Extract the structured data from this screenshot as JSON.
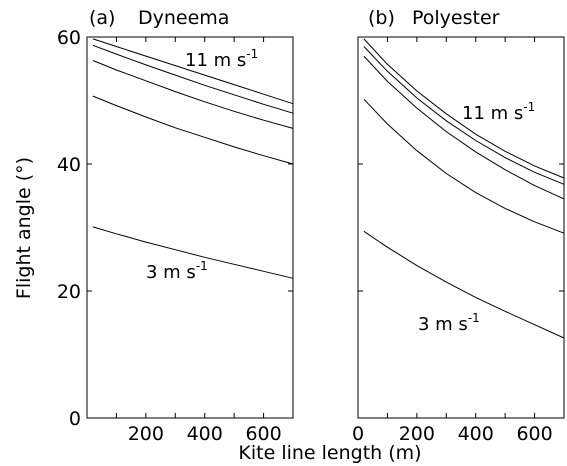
{
  "chart_data": [
    {
      "type": "line",
      "panel_label": "(a)",
      "title": "Dyneema",
      "xlabel": "Kite line length (m)",
      "ylabel": "Flight angle (°)",
      "xlim": [
        0,
        700
      ],
      "ylim": [
        0,
        60
      ],
      "xticks": [
        200,
        400,
        600
      ],
      "yticks": [
        0,
        20,
        40,
        60
      ],
      "annotations": [
        {
          "text": "11 m s",
          "sup": "-1",
          "series": 0
        },
        {
          "text": "3 m s",
          "sup": "-1",
          "series": 4
        }
      ],
      "series": [
        {
          "x": [
            20,
            100,
            200,
            300,
            400,
            500,
            600,
            700
          ],
          "y": [
            59.7,
            58.5,
            57.0,
            55.5,
            54.0,
            52.5,
            51.0,
            49.5
          ]
        },
        {
          "x": [
            20,
            100,
            200,
            300,
            400,
            500,
            600,
            700
          ],
          "y": [
            58.7,
            57.3,
            55.6,
            54.0,
            52.4,
            50.9,
            49.4,
            48.0
          ]
        },
        {
          "x": [
            20,
            100,
            200,
            300,
            400,
            500,
            600,
            700
          ],
          "y": [
            56.3,
            54.8,
            53.1,
            51.4,
            49.8,
            48.3,
            46.9,
            45.6
          ]
        },
        {
          "x": [
            20,
            100,
            200,
            300,
            400,
            500,
            600,
            700
          ],
          "y": [
            50.7,
            49.2,
            47.4,
            45.7,
            44.2,
            42.7,
            41.3,
            40.0
          ]
        },
        {
          "x": [
            20,
            100,
            200,
            300,
            400,
            500,
            600,
            700
          ],
          "y": [
            30.1,
            29.0,
            27.7,
            26.5,
            25.3,
            24.2,
            23.1,
            22.0
          ]
        }
      ]
    },
    {
      "type": "line",
      "panel_label": "(b)",
      "title": "Polyester",
      "xlabel": "Kite line length (m)",
      "ylabel": "",
      "xlim": [
        0,
        700
      ],
      "ylim": [
        0,
        60
      ],
      "xticks": [
        0,
        200,
        400,
        600
      ],
      "yticks": [
        0,
        20,
        40,
        60
      ],
      "annotations": [
        {
          "text": "11 m s",
          "sup": "-1",
          "series": 0
        },
        {
          "text": "3 m s",
          "sup": "-1",
          "series": 4
        }
      ],
      "series": [
        {
          "x": [
            20,
            100,
            200,
            300,
            400,
            500,
            600,
            700
          ],
          "y": [
            59.7,
            55.7,
            51.5,
            47.9,
            44.7,
            42.0,
            39.7,
            37.8
          ]
        },
        {
          "x": [
            20,
            100,
            200,
            300,
            400,
            500,
            600,
            700
          ],
          "y": [
            58.5,
            54.6,
            50.4,
            46.8,
            43.7,
            41.0,
            38.7,
            36.8
          ]
        },
        {
          "x": [
            20,
            100,
            200,
            300,
            400,
            500,
            600,
            700
          ],
          "y": [
            57.0,
            53.0,
            48.8,
            45.1,
            41.9,
            39.1,
            36.6,
            34.5
          ]
        },
        {
          "x": [
            20,
            100,
            200,
            300,
            400,
            500,
            600,
            700
          ],
          "y": [
            50.2,
            46.3,
            42.1,
            38.5,
            35.5,
            33.0,
            30.9,
            29.1
          ]
        },
        {
          "x": [
            20,
            100,
            200,
            300,
            400,
            500,
            600,
            700
          ],
          "y": [
            29.4,
            26.9,
            24.0,
            21.4,
            19.0,
            16.8,
            14.7,
            12.6
          ]
        }
      ]
    }
  ]
}
